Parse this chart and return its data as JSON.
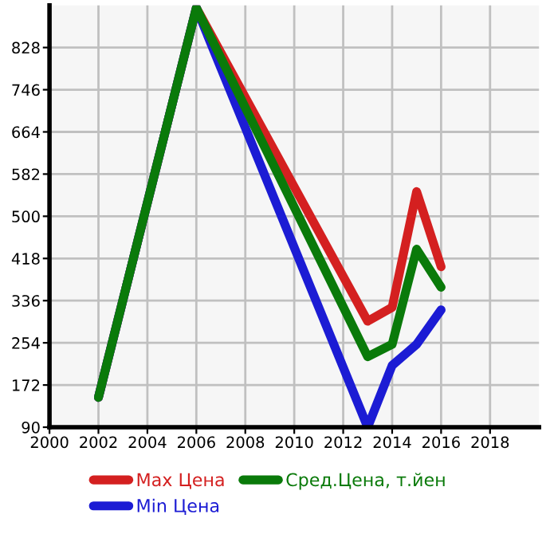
{
  "chart_data": {
    "type": "line",
    "x": [
      2002,
      2006,
      2013,
      2014,
      2015,
      2016
    ],
    "series": [
      {
        "name": "Max Цена",
        "color": "#d42020",
        "values": [
          148,
          905,
          296,
          323,
          548,
          402
        ]
      },
      {
        "name": "Min Цена",
        "color": "#1c1cd4",
        "values": [
          148,
          905,
          90,
          210,
          251,
          318
        ]
      },
      {
        "name": "Сред.Цена, т.йен",
        "color": "#0a7a0a",
        "values": [
          148,
          905,
          227,
          251,
          436,
          362
        ]
      }
    ],
    "xlim": [
      2000,
      2020
    ],
    "xticks": [
      2000,
      2002,
      2004,
      2006,
      2008,
      2010,
      2012,
      2014,
      2016,
      2018
    ],
    "ylim": [
      90,
      910
    ],
    "yticks": [
      90,
      172,
      254,
      336,
      418,
      500,
      582,
      664,
      746,
      828
    ],
    "grid": true,
    "legend": "bottom",
    "marker": "none",
    "line_style": "solid"
  }
}
